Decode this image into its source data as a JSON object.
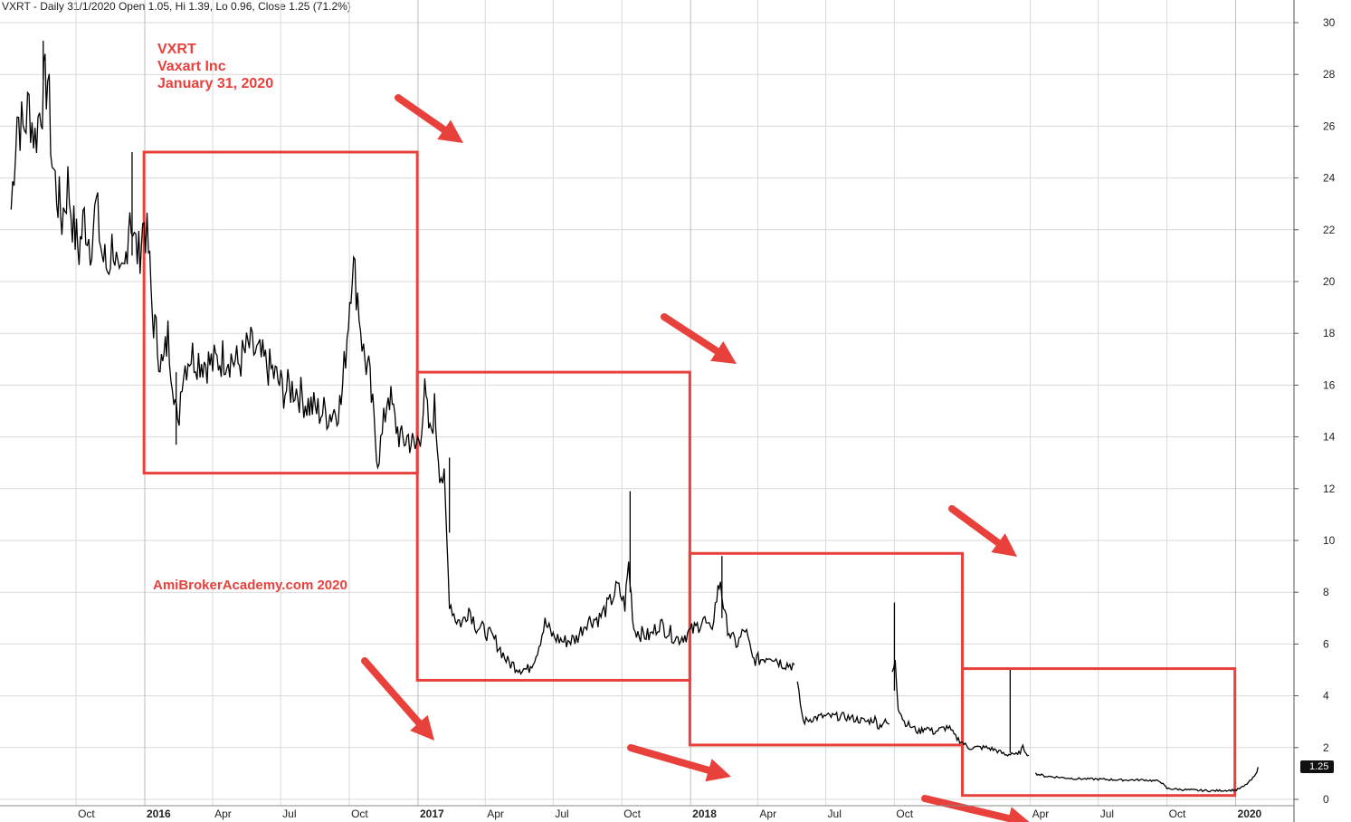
{
  "header": {
    "text": "VXRT - Daily 31/1/2020 Open 1.05, Hi 1.39, Lo 0.96, Close 1.25 (71.2%)"
  },
  "annotation": {
    "ticker": "VXRT",
    "company": "Vaxart Inc",
    "date": "January 31, 2020"
  },
  "watermark": {
    "text": "AmiBrokerAcademy.com   2020"
  },
  "last_value_label": "1.25",
  "colors": {
    "price": "#000000",
    "annotation": "#e8413c",
    "grid": "#d9d9d9"
  },
  "chart_data": {
    "type": "line",
    "title": "VXRT - Daily 31/1/2020 Open 1.05, Hi 1.39, Lo 0.96, Close 1.25 (71.2%)",
    "ylim": [
      0,
      30
    ],
    "y_ticks": [
      0,
      2,
      4,
      6,
      8,
      10,
      12,
      14,
      16,
      18,
      20,
      22,
      24,
      26,
      28,
      30
    ],
    "x_ticks": [
      {
        "label": "Oct",
        "x": "2015-10-01",
        "bold": false
      },
      {
        "label": "2016",
        "x": "2016-01-01",
        "bold": true
      },
      {
        "label": "Apr",
        "x": "2016-04-01",
        "bold": false
      },
      {
        "label": "Jul",
        "x": "2016-07-01",
        "bold": false
      },
      {
        "label": "Oct",
        "x": "2016-10-01",
        "bold": false
      },
      {
        "label": "2017",
        "x": "2017-01-01",
        "bold": true
      },
      {
        "label": "Apr",
        "x": "2017-04-01",
        "bold": false
      },
      {
        "label": "Jul",
        "x": "2017-07-01",
        "bold": false
      },
      {
        "label": "Oct",
        "x": "2017-10-01",
        "bold": false
      },
      {
        "label": "2018",
        "x": "2018-01-01",
        "bold": true
      },
      {
        "label": "Apr",
        "x": "2018-04-01",
        "bold": false
      },
      {
        "label": "Jul",
        "x": "2018-07-01",
        "bold": false
      },
      {
        "label": "Oct",
        "x": "2018-10-01",
        "bold": false
      },
      {
        "label": "Apr",
        "x": "2019-04-01",
        "bold": false
      },
      {
        "label": "Jul",
        "x": "2019-07-01",
        "bold": false
      },
      {
        "label": "Oct",
        "x": "2019-10-01",
        "bold": false
      },
      {
        "label": "2020",
        "x": "2020-01-01",
        "bold": true
      }
    ],
    "series": [
      {
        "values": [
          [
            "2015-07-06",
            22.8
          ],
          [
            "2015-07-14",
            26.5
          ],
          [
            "2015-07-22",
            25.8
          ],
          [
            "2015-07-30",
            26.8
          ],
          [
            "2015-08-07",
            25.5
          ],
          [
            "2015-08-15",
            26.9
          ],
          [
            "2015-08-24",
            27.9
          ],
          [
            "2015-08-30",
            24.6
          ],
          [
            "2015-09-05",
            23.5
          ],
          [
            "2015-09-12",
            22.4
          ],
          [
            "2015-09-20",
            23.8
          ],
          [
            "2015-09-28",
            22.0
          ],
          [
            "2015-10-05",
            21.2
          ],
          [
            "2015-10-12",
            22.5
          ],
          [
            "2015-10-20",
            21.5
          ],
          [
            "2015-10-28",
            22.9
          ],
          [
            "2015-11-05",
            21.0
          ],
          [
            "2015-11-12",
            20.5
          ],
          [
            "2015-11-20",
            21.6
          ],
          [
            "2015-11-28",
            19.6
          ],
          [
            "2015-12-05",
            20.4
          ],
          [
            "2015-12-12",
            23.0
          ],
          [
            "2015-12-18",
            21.5
          ],
          [
            "2015-12-24",
            21.0
          ],
          [
            "2015-12-31",
            22.4
          ],
          [
            "2016-01-06",
            21.2
          ],
          [
            "2016-01-11",
            18.8
          ],
          [
            "2016-01-18",
            17.6
          ],
          [
            "2016-01-25",
            16.6
          ],
          [
            "2016-02-01",
            17.9
          ],
          [
            "2016-02-09",
            16.0
          ],
          [
            "2016-02-14",
            14.2
          ],
          [
            "2016-02-20",
            16.5
          ],
          [
            "2016-03-01",
            17.2
          ],
          [
            "2016-03-15",
            17.0
          ],
          [
            "2016-04-01",
            16.8
          ],
          [
            "2016-04-20",
            17.2
          ],
          [
            "2016-05-05",
            16.8
          ],
          [
            "2016-05-20",
            17.5
          ],
          [
            "2016-06-05",
            17.0
          ],
          [
            "2016-06-20",
            16.5
          ],
          [
            "2016-07-05",
            15.8
          ],
          [
            "2016-07-20",
            15.9
          ],
          [
            "2016-08-05",
            15.3
          ],
          [
            "2016-08-20",
            15.0
          ],
          [
            "2016-09-05",
            14.9
          ],
          [
            "2016-09-20",
            15.3
          ],
          [
            "2016-09-28",
            18.0
          ],
          [
            "2016-10-05",
            20.8
          ],
          [
            "2016-10-12",
            19.5
          ],
          [
            "2016-10-20",
            17.2
          ],
          [
            "2016-10-27",
            16.5
          ],
          [
            "2016-11-03",
            14.5
          ],
          [
            "2016-11-08",
            13.2
          ],
          [
            "2016-11-14",
            14.0
          ],
          [
            "2016-11-22",
            15.8
          ],
          [
            "2016-12-01",
            14.6
          ],
          [
            "2016-12-10",
            13.8
          ],
          [
            "2016-12-19",
            14.0
          ],
          [
            "2016-12-28",
            13.5
          ],
          [
            "2017-01-04",
            14.2
          ],
          [
            "2017-01-10",
            15.6
          ],
          [
            "2017-01-17",
            14.0
          ],
          [
            "2017-01-23",
            15.1
          ],
          [
            "2017-01-30",
            12.8
          ],
          [
            "2017-02-05",
            12.2
          ],
          [
            "2017-02-12",
            7.7
          ],
          [
            "2017-02-20",
            7.0
          ],
          [
            "2017-03-01",
            6.8
          ],
          [
            "2017-03-10",
            7.4
          ],
          [
            "2017-03-20",
            6.7
          ],
          [
            "2017-04-01",
            6.5
          ],
          [
            "2017-04-15",
            6.1
          ],
          [
            "2017-05-01",
            5.3
          ],
          [
            "2017-05-15",
            5.1
          ],
          [
            "2017-05-28",
            5.0
          ],
          [
            "2017-06-08",
            5.6
          ],
          [
            "2017-06-20",
            6.8
          ],
          [
            "2017-07-01",
            6.3
          ],
          [
            "2017-07-15",
            6.1
          ],
          [
            "2017-08-01",
            6.2
          ],
          [
            "2017-08-15",
            6.9
          ],
          [
            "2017-09-01",
            7.0
          ],
          [
            "2017-09-15",
            7.6
          ],
          [
            "2017-09-25",
            8.2
          ],
          [
            "2017-10-05",
            7.5
          ],
          [
            "2017-10-10",
            9.1
          ],
          [
            "2017-10-17",
            6.6
          ],
          [
            "2017-10-26",
            6.4
          ],
          [
            "2017-11-08",
            6.3
          ],
          [
            "2017-11-20",
            6.8
          ],
          [
            "2017-12-01",
            6.5
          ],
          [
            "2017-12-15",
            6.2
          ],
          [
            "2017-12-28",
            6.4
          ],
          [
            "2018-01-08",
            6.6
          ],
          [
            "2018-01-18",
            7.0
          ],
          [
            "2018-01-28",
            6.4
          ],
          [
            "2018-02-05",
            7.8
          ],
          [
            "2018-02-10",
            8.5
          ],
          [
            "2018-02-16",
            7.0
          ],
          [
            "2018-02-25",
            6.2
          ],
          [
            "2018-03-05",
            6.0
          ],
          [
            "2018-03-15",
            6.6
          ],
          [
            "2018-03-25",
            5.4
          ],
          [
            "2018-04-05",
            5.4
          ],
          [
            "2018-04-18",
            5.6
          ],
          [
            "2018-05-01",
            5.3
          ],
          [
            "2018-05-12",
            5.2
          ],
          [
            "2018-05-20",
            5.2
          ]
        ]
      },
      {
        "values": [
          [
            "2018-05-24",
            4.4
          ],
          [
            "2018-06-01",
            3.0
          ],
          [
            "2018-06-10",
            3.1
          ],
          [
            "2018-06-25",
            3.2
          ],
          [
            "2018-07-10",
            3.2
          ],
          [
            "2018-07-25",
            3.2
          ],
          [
            "2018-08-10",
            3.1
          ],
          [
            "2018-08-25",
            3.0
          ],
          [
            "2018-09-05",
            3.1
          ],
          [
            "2018-09-10",
            2.8
          ],
          [
            "2018-09-17",
            3.0
          ],
          [
            "2018-09-24",
            2.9
          ]
        ]
      },
      {
        "values": [
          [
            "2018-09-28",
            4.8
          ],
          [
            "2018-10-02",
            5.5
          ],
          [
            "2018-10-06",
            3.6
          ],
          [
            "2018-10-14",
            3.0
          ],
          [
            "2018-10-24",
            2.8
          ],
          [
            "2018-11-03",
            2.6
          ],
          [
            "2018-11-12",
            2.8
          ],
          [
            "2018-11-22",
            2.6
          ],
          [
            "2018-12-02",
            2.7
          ],
          [
            "2018-12-12",
            2.8
          ],
          [
            "2018-12-22",
            2.4
          ],
          [
            "2018-12-31",
            2.2
          ],
          [
            "2019-01-08",
            2.0
          ],
          [
            "2019-01-18",
            2.0
          ],
          [
            "2019-02-01",
            2.0
          ],
          [
            "2019-02-14",
            1.9
          ],
          [
            "2019-02-28",
            1.7
          ],
          [
            "2019-03-07",
            1.8
          ],
          [
            "2019-03-15",
            1.7
          ],
          [
            "2019-03-22",
            2.0
          ],
          [
            "2019-03-30",
            1.7
          ]
        ]
      },
      {
        "values": [
          [
            "2019-04-08",
            1.0
          ],
          [
            "2019-04-20",
            0.9
          ],
          [
            "2019-05-10",
            0.85
          ],
          [
            "2019-06-01",
            0.8
          ],
          [
            "2019-07-01",
            0.78
          ],
          [
            "2019-08-01",
            0.75
          ],
          [
            "2019-09-01",
            0.75
          ],
          [
            "2019-09-22",
            0.7
          ],
          [
            "2019-10-01",
            0.42
          ],
          [
            "2019-10-20",
            0.38
          ],
          [
            "2019-11-10",
            0.35
          ],
          [
            "2019-12-01",
            0.33
          ],
          [
            "2019-12-20",
            0.35
          ],
          [
            "2020-01-02",
            0.36
          ],
          [
            "2020-01-12",
            0.5
          ],
          [
            "2020-01-22",
            0.75
          ],
          [
            "2020-01-28",
            0.95
          ],
          [
            "2020-01-31",
            1.25
          ]
        ]
      }
    ],
    "spikes": [
      [
        "2015-08-18",
        27.8,
        29.3
      ],
      [
        "2015-12-15",
        21.0,
        25.0
      ],
      [
        "2016-02-12",
        13.7,
        16.5
      ],
      [
        "2017-02-12",
        10.3,
        13.2
      ],
      [
        "2017-10-12",
        8.0,
        11.9
      ],
      [
        "2018-02-12",
        7.0,
        9.4
      ],
      [
        "2018-10-01",
        4.2,
        7.6
      ],
      [
        "2019-03-05",
        1.8,
        5.0
      ]
    ],
    "boxes": [
      {
        "x0": "2015-12-31",
        "x1": "2016-12-31",
        "y0": 12.6,
        "y1": 25.0
      },
      {
        "x0": "2016-12-31",
        "x1": "2017-12-31",
        "y0": 4.6,
        "y1": 16.5
      },
      {
        "x0": "2017-12-31",
        "x1": "2018-12-31",
        "y0": 2.1,
        "y1": 9.5
      },
      {
        "x0": "2018-12-31",
        "x1": "2019-12-31",
        "y0": 0.15,
        "y1": 5.05
      }
    ]
  }
}
